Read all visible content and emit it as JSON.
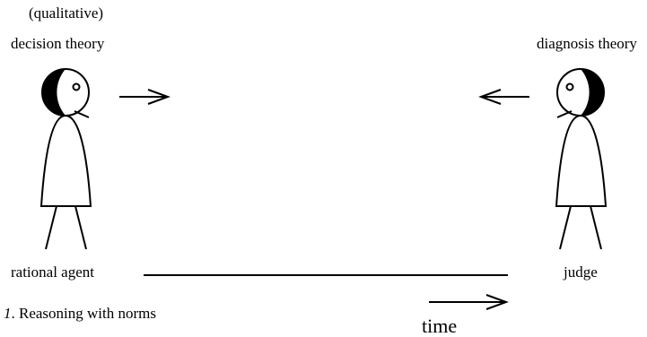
{
  "labels": {
    "qualifier": "(qualitative)",
    "left_theory": "decision theory",
    "right_theory": "diagnosis theory",
    "left_agent": "rational agent",
    "right_agent": "judge",
    "time": "time"
  },
  "caption": {
    "number": "1",
    "text": ". Reasoning with norms"
  }
}
